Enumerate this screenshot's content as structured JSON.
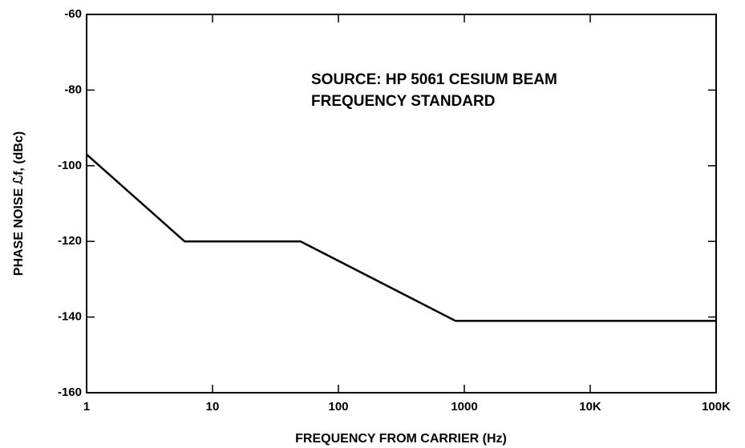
{
  "chart_data": {
    "type": "line",
    "title": null,
    "annotation": [
      "SOURCE: HP 5061 CESIUM BEAM",
      "FREQUENCY STANDARD"
    ],
    "x_label": "FREQUENCY FROM CARRIER (Hz)",
    "y_label": "PHASE NOISE ℒf, (dBc)",
    "xscale": "log",
    "xlim": [
      1,
      100000
    ],
    "xticks": [
      1,
      10,
      100,
      1000,
      {
        "value": 10000,
        "label": "10K"
      },
      {
        "value": 100000,
        "label": "100K"
      }
    ],
    "ylim": [
      -160,
      -60
    ],
    "yticks": [
      -160,
      -140,
      -120,
      -100,
      -80,
      -60
    ],
    "grid": false,
    "series": [
      {
        "name": null,
        "color": "#000000",
        "x": [
          1,
          6,
          50,
          850,
          100000
        ],
        "values": [
          -97,
          -120,
          -120,
          -141,
          -141
        ]
      }
    ]
  }
}
